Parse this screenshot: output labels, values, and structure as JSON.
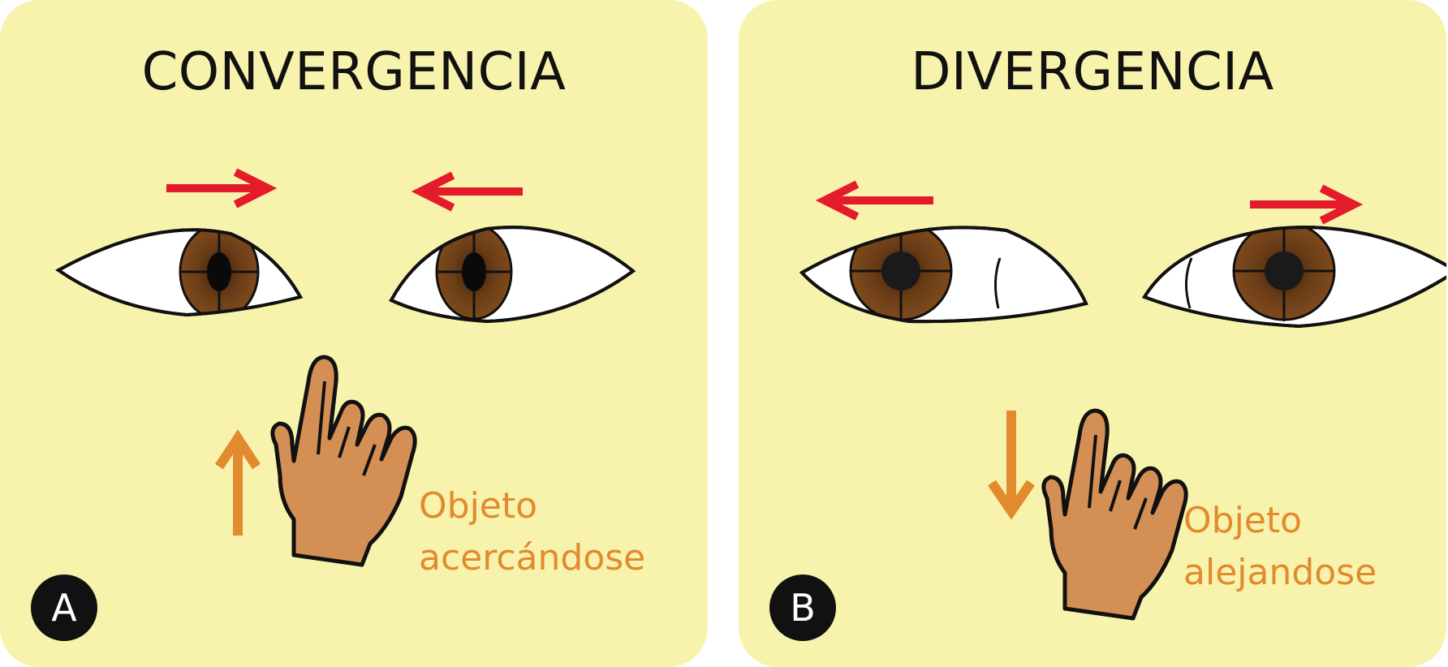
{
  "colors": {
    "panel_bg": "#f8f3ac",
    "eye_movement_arrow": "#e41b2a",
    "object_arrow": "#e28a2e",
    "caption_text": "#e28a2e",
    "skin": "#d48f54",
    "iris": "#6a3d17",
    "outline": "#111111"
  },
  "panels": [
    {
      "id": "A",
      "title": "CONVERGENCIA",
      "badge": "A",
      "caption_line1": "Objeto",
      "caption_line2": "acercándose",
      "eye_arrows": [
        "right",
        "left"
      ],
      "object_arrow": "up",
      "icons": [
        "eye-icon",
        "pointing-hand-icon"
      ]
    },
    {
      "id": "B",
      "title": "DIVERGENCIA",
      "badge": "B",
      "caption_line1": "Objeto",
      "caption_line2": "alejandose",
      "eye_arrows": [
        "left",
        "right"
      ],
      "object_arrow": "down",
      "icons": [
        "eye-icon",
        "pointing-hand-icon"
      ]
    }
  ]
}
